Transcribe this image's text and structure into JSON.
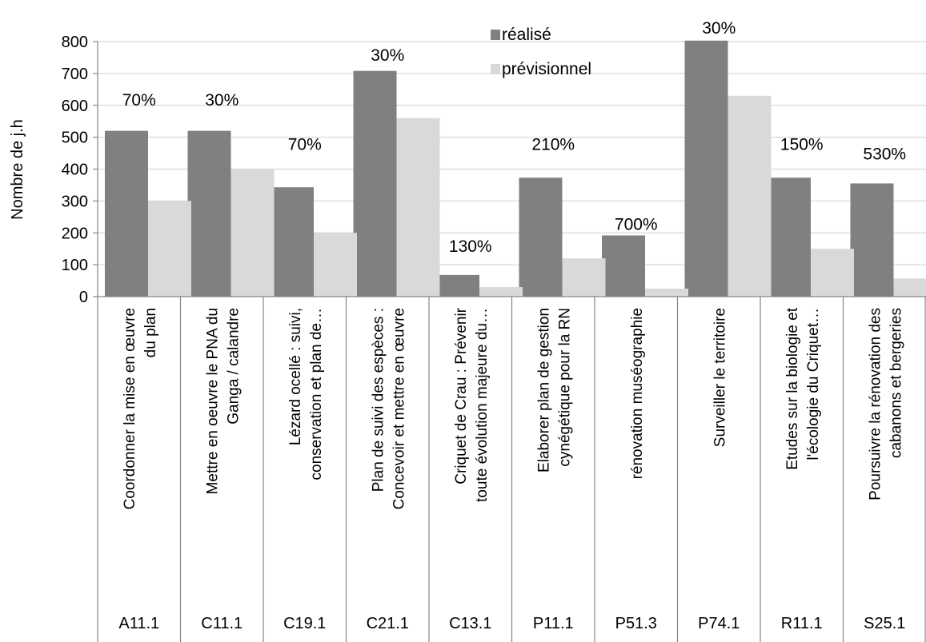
{
  "chart_data": {
    "type": "bar",
    "title": "",
    "ylabel": "Nombre de j.h",
    "ylim": [
      0,
      800
    ],
    "yticks": [
      0,
      100,
      200,
      300,
      400,
      500,
      600,
      700,
      800
    ],
    "grid": true,
    "legend_position": "top-center",
    "codes": [
      "A11.1",
      "C11.1",
      "C19.1",
      "C21.1",
      "C13.1",
      "P11.1",
      "P51.3",
      "P74.1",
      "R11.1",
      "S25.1"
    ],
    "categories": [
      [
        "Coordonner la mise en œuvre",
        "du plan"
      ],
      [
        "Mettre en oeuvre le PNA du",
        "Ganga / calandre"
      ],
      [
        "Lézard ocellé : suivi,",
        "conservation et plan de…"
      ],
      [
        "Plan de suivi des espèces :",
        "Concevoir et mettre en œuvre"
      ],
      [
        "Criquet de Crau : Prévenir",
        "toute évolution majeure du…"
      ],
      [
        "Elaborer plan de gestion",
        "cynégétique pour la RN"
      ],
      [
        "rénovation muséographie"
      ],
      [
        "Surveiller le territoire"
      ],
      [
        "Etudes sur la biologie et",
        "l'écologie du Criquet…"
      ],
      [
        "Poursuivre la rénovation des",
        "cabanons et bergeries"
      ]
    ],
    "series": [
      {
        "name": "réalisé",
        "color": "#808080",
        "values": [
          520,
          520,
          343,
          708,
          68,
          373,
          192,
          803,
          373,
          355
        ]
      },
      {
        "name": "prévisionnel",
        "color": "#d9d9d9",
        "values": [
          300,
          400,
          200,
          560,
          30,
          120,
          25,
          630,
          150,
          57
        ]
      }
    ],
    "annotations": [
      "70%",
      "30%",
      "70%",
      "30%",
      "130%",
      "210%",
      "700%",
      "30%",
      "150%",
      "530%"
    ],
    "annotation_values": [
      600,
      600,
      460,
      740,
      140,
      460,
      210,
      825,
      460,
      430
    ]
  }
}
